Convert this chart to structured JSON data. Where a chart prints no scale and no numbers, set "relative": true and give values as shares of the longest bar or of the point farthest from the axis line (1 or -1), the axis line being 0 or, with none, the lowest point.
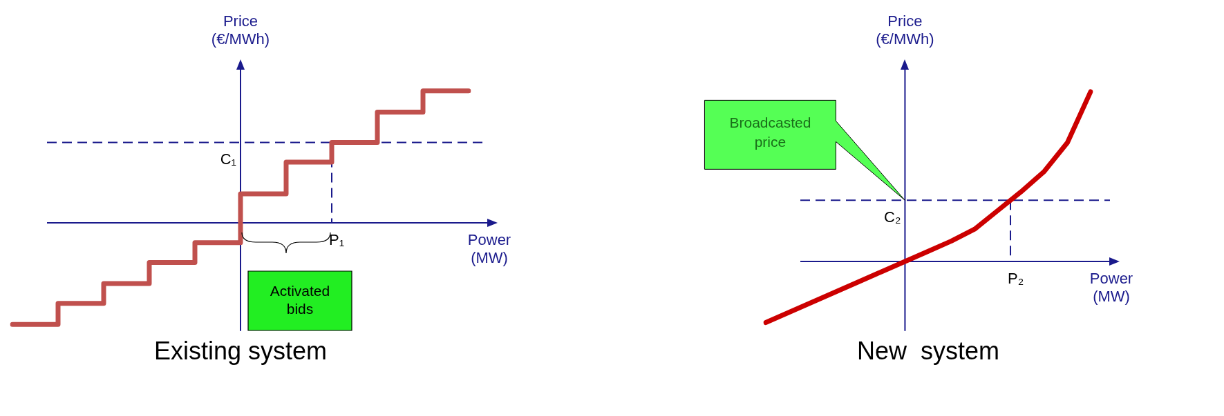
{
  "chart_data": [
    {
      "type": "step",
      "title": "Existing system",
      "xlabel": "Power (MW)",
      "ylabel": "Price (€/MWh)",
      "relative": true,
      "categories": [
        null,
        null,
        null,
        null,
        null,
        null,
        null,
        null,
        null,
        null,
        null
      ],
      "series": [
        {
          "color": "#c0504d",
          "values": [
            -0.77,
            -0.61,
            -0.46,
            -0.3,
            -0.15,
            0.22,
            0.46,
            0.61,
            0.84,
            1.0,
            1.0
          ]
        }
      ],
      "ref_lines": [
        {
          "axis": "y",
          "value": 0.61,
          "label": "C₁",
          "line_style": "dashed",
          "color": "#1a1a8c"
        },
        {
          "axis": "y",
          "value": 0,
          "color": "#1a1a8c"
        }
      ],
      "annotations": [
        "Activated bids",
        "P₁"
      ]
    },
    {
      "type": "line",
      "title": "New  system",
      "xlabel": "Power (MW)",
      "ylabel": "Price (€/MWh)",
      "relative": true,
      "categories": [
        null,
        null,
        null,
        null,
        null,
        null,
        null,
        null,
        null,
        null,
        null,
        null,
        null,
        null,
        null
      ],
      "series": [
        {
          "color": "#cc0000",
          "values": [
            -0.36,
            -0.3,
            -0.24,
            -0.18,
            -0.12,
            -0.06,
            0,
            0.06,
            0.12,
            0.19,
            0.3,
            0.41,
            0.53,
            0.7,
            1.0
          ]
        }
      ],
      "ref_lines": [
        {
          "axis": "y",
          "value": 0.36,
          "label": "C₂",
          "line_style": "dashed",
          "color": "#1a1a8c"
        },
        {
          "axis": "y",
          "value": 0,
          "color": "#1a1a8c"
        }
      ],
      "annotations": [
        "Broadcasted price",
        "P₂"
      ]
    }
  ]
}
